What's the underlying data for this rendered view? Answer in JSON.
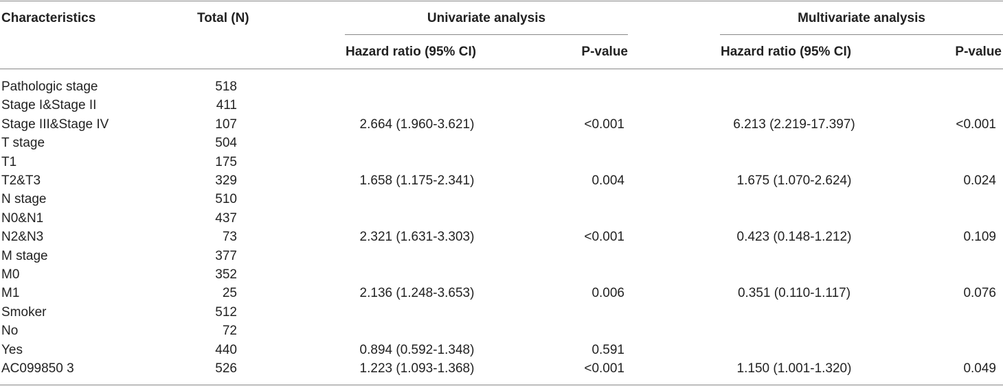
{
  "table": {
    "header": {
      "characteristics": "Characteristics",
      "total": "Total (N)",
      "univariate": "Univariate analysis",
      "multivariate": "Multivariate analysis",
      "uni_hr": "Hazard ratio (95% CI)",
      "uni_p": "P-value",
      "multi_hr": "Hazard ratio (95% CI)",
      "multi_p": "P-value"
    },
    "rows": [
      {
        "characteristic": "Pathologic stage",
        "total": "518"
      },
      {
        "characteristic": "Stage I&Stage II",
        "total": "411"
      },
      {
        "characteristic": "Stage III&Stage IV",
        "total": "107",
        "uni_hr": "2.664 (1.960-3.621)",
        "uni_p": "<0.001",
        "multi_hr": "6.213 (2.219-17.397)",
        "multi_p": "<0.001"
      },
      {
        "characteristic": "T stage",
        "total": "504"
      },
      {
        "characteristic": "T1",
        "total": "175"
      },
      {
        "characteristic": "T2&T3",
        "total": "329",
        "uni_hr": "1.658 (1.175-2.341)",
        "uni_p": "0.004",
        "multi_hr": "1.675 (1.070-2.624)",
        "multi_p": "0.024"
      },
      {
        "characteristic": "N stage",
        "total": "510"
      },
      {
        "characteristic": "N0&N1",
        "total": "437"
      },
      {
        "characteristic": "N2&N3",
        "total": "73",
        "uni_hr": "2.321 (1.631-3.303)",
        "uni_p": "<0.001",
        "multi_hr": "0.423 (0.148-1.212)",
        "multi_p": "0.109"
      },
      {
        "characteristic": "M stage",
        "total": "377"
      },
      {
        "characteristic": "M0",
        "total": "352"
      },
      {
        "characteristic": "M1",
        "total": "25",
        "uni_hr": "2.136 (1.248-3.653)",
        "uni_p": "0.006",
        "multi_hr": "0.351 (0.110-1.117)",
        "multi_p": "0.076"
      },
      {
        "characteristic": "Smoker",
        "total": "512"
      },
      {
        "characteristic": "No",
        "total": "72"
      },
      {
        "characteristic": "Yes",
        "total": "440",
        "uni_hr": "0.894 (0.592-1.348)",
        "uni_p": "0.591"
      },
      {
        "characteristic": "AC099850 3",
        "total": "526",
        "uni_hr": "1.223 (1.093-1.368)",
        "uni_p": "<0.001",
        "multi_hr": "1.150 (1.001-1.320)",
        "multi_p": "0.049"
      }
    ]
  }
}
